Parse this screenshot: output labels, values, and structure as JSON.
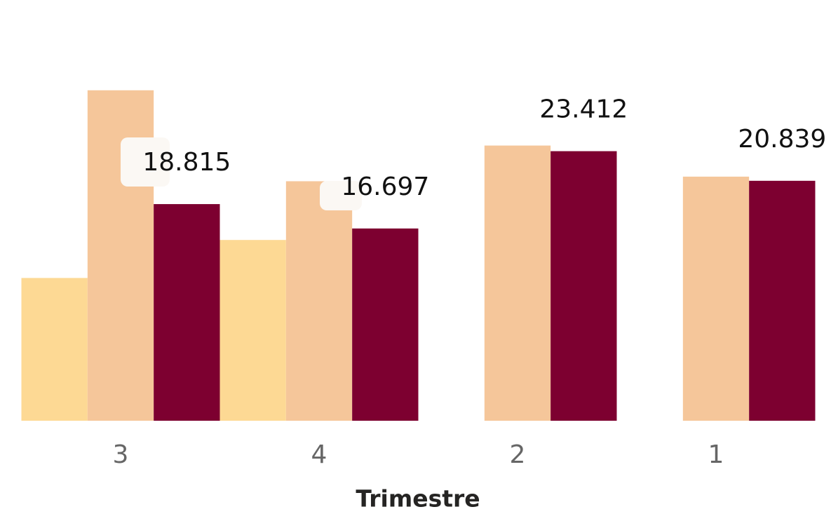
{
  "chart_data": {
    "type": "bar",
    "x_label": "Trimestre",
    "categories": [
      "3",
      "4",
      "2",
      "1"
    ],
    "series": [
      {
        "color": "#fdd994",
        "values": [
          12400,
          15700,
          null,
          null
        ]
      },
      {
        "color": "#f5c69a",
        "values": [
          28700,
          20800,
          23900,
          21200
        ]
      },
      {
        "color": "#7d0030",
        "values": [
          18815,
          16697,
          23412,
          20839
        ],
        "value_labels": [
          "18.815",
          "16.697",
          "23.412",
          "20.839"
        ]
      }
    ],
    "ylim": [
      0,
      30000
    ]
  }
}
